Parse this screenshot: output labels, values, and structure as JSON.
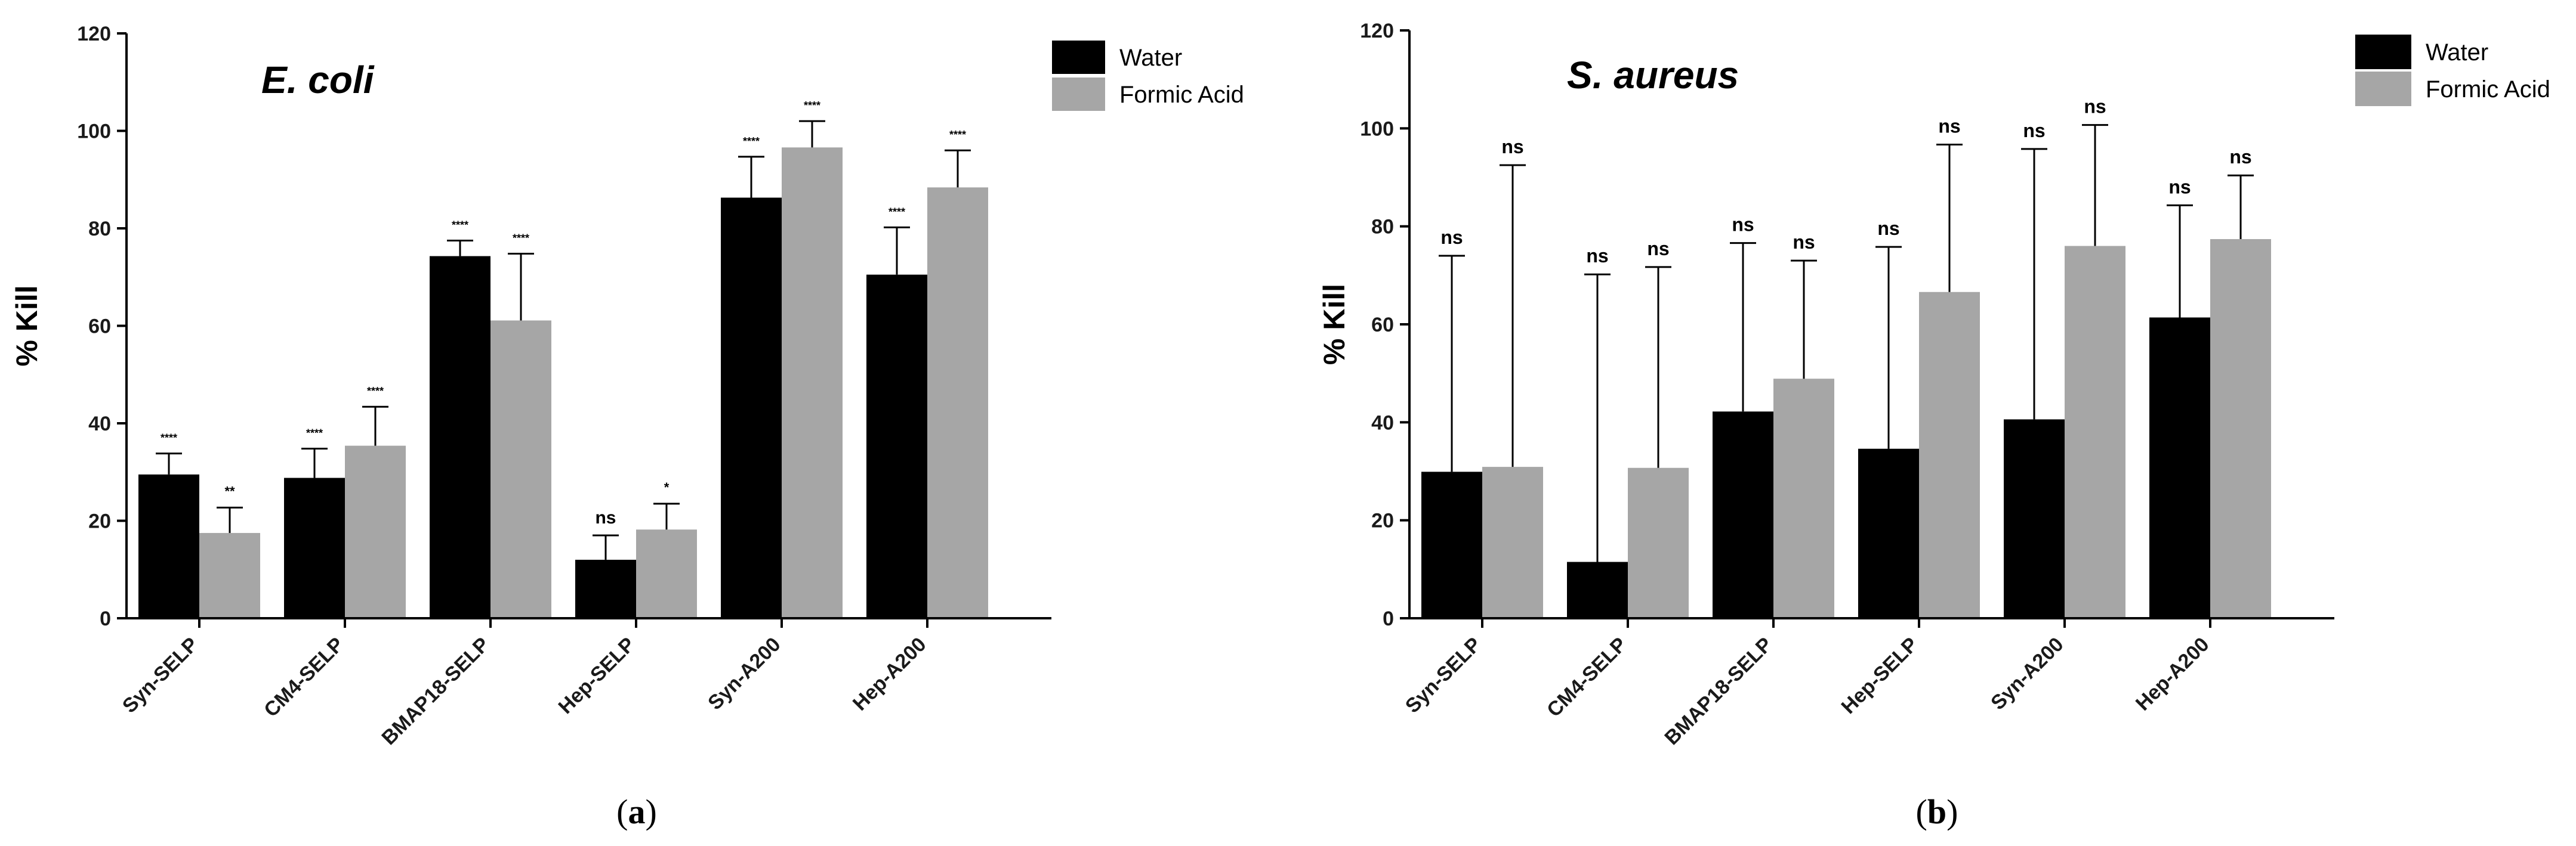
{
  "chart_data": [
    {
      "type": "bar",
      "title": "E. coli",
      "caption": "(a)",
      "caption_letter": "a",
      "xlabel": "",
      "ylabel": "% Kill",
      "ylim": [
        0,
        120
      ],
      "yticks": [
        0,
        20,
        40,
        60,
        80,
        100,
        120
      ],
      "grid": false,
      "legend_position": "top-right",
      "categories": [
        "Syn-SELP",
        "CM4-SELP",
        "BMAP18-SELP",
        "Hep-SELP",
        "Syn-A200",
        "Hep-A200"
      ],
      "series": [
        {
          "name": "Water",
          "color": "#000000",
          "values": [
            29.5,
            28.8,
            74.3,
            12.0,
            86.3,
            70.5
          ],
          "error": [
            4.3,
            6.0,
            3.2,
            5.0,
            8.4,
            9.7
          ],
          "significance": [
            "****",
            "****",
            "****",
            "ns",
            "****",
            "****"
          ]
        },
        {
          "name": "Formic Acid",
          "color": "#a6a6a6",
          "values": [
            17.5,
            35.4,
            61.1,
            18.2,
            96.6,
            88.4
          ],
          "error": [
            5.2,
            8.0,
            13.7,
            5.3,
            5.4,
            7.6
          ],
          "significance": [
            "**",
            "****",
            "****",
            "*",
            "****",
            "****"
          ]
        }
      ]
    },
    {
      "type": "bar",
      "title": "S. aureus",
      "caption": "(b)",
      "caption_letter": "b",
      "xlabel": "",
      "ylabel": "% Kill",
      "ylim": [
        0,
        120
      ],
      "yticks": [
        0,
        20,
        40,
        60,
        80,
        100,
        120
      ],
      "grid": false,
      "legend_position": "top-right",
      "categories": [
        "Syn-SELP",
        "CM4-SELP",
        "BMAP18-SELP",
        "Hep-SELP",
        "Syn-A200",
        "Hep-A200"
      ],
      "series": [
        {
          "name": "Water",
          "color": "#000000",
          "values": [
            29.9,
            11.5,
            42.2,
            34.6,
            40.6,
            61.4
          ],
          "error": [
            44.1,
            58.7,
            34.4,
            41.2,
            55.2,
            22.9
          ],
          "significance": [
            "ns",
            "ns",
            "ns",
            "ns",
            "ns",
            "ns"
          ]
        },
        {
          "name": "Formic Acid",
          "color": "#a6a6a6",
          "values": [
            30.9,
            30.7,
            48.9,
            66.6,
            76.0,
            77.4
          ],
          "error": [
            61.6,
            41.0,
            24.1,
            30.1,
            24.7,
            13.0
          ],
          "significance": [
            "ns",
            "ns",
            "ns",
            "ns",
            "ns",
            "ns"
          ]
        }
      ]
    }
  ]
}
